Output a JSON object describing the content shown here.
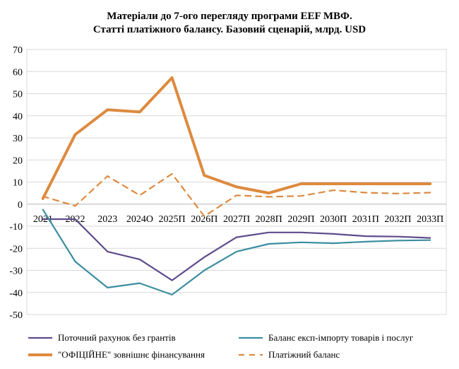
{
  "chart_data": {
    "type": "line",
    "title": "Матеріали до 7-ого перегляду програми EEF МВФ.",
    "subtitle": "Статті платіжного балансу. Базовий сценарій, млрд. USD",
    "categories": [
      "2021",
      "2022",
      "2023",
      "2024О",
      "2025П",
      "2026П",
      "2027П",
      "2028П",
      "2029П",
      "2030П",
      "2031П",
      "2032П",
      "2033П"
    ],
    "ylim": [
      -50,
      70
    ],
    "yticks": [
      "70",
      "60",
      "50",
      "40",
      "30",
      "20",
      "10",
      "0",
      "-10",
      "-20",
      "-30",
      "-40",
      "-50"
    ],
    "grid": true,
    "legend_position": "bottom",
    "series": [
      {
        "name": "Поточний рахунок без грантів",
        "color": "#5f4b8b",
        "dash": "solid",
        "values": [
          -6.8,
          -6.8,
          -21.5,
          -25,
          -34.5,
          -24,
          -15,
          -12.8,
          -12.8,
          -13.5,
          -14.5,
          -14.7,
          -15.3
        ]
      },
      {
        "name": "Баланс експ-імпорту товарів і послуг",
        "color": "#3b8ea0",
        "dash": "solid",
        "values": [
          -2.5,
          -26,
          -37.8,
          -35.8,
          -41,
          -30,
          -21.5,
          -18,
          -17.3,
          -17.7,
          -17,
          -16.5,
          -16.3
        ]
      },
      {
        "name": "\"ОФІЦІЙНЕ\"  зовнішнє фінансування",
        "color": "#dd8a3e",
        "dash": "solid",
        "values": [
          2.5,
          31.5,
          42.7,
          41.7,
          57.2,
          13,
          7.8,
          5,
          9.2,
          9.2,
          9.2,
          9.2,
          9.2
        ]
      },
      {
        "name": "Платіжний баланс",
        "color": "#dd8a3e",
        "dash": "dashed",
        "values": [
          3.5,
          -0.8,
          12.7,
          4,
          13.7,
          -5.5,
          4,
          3.3,
          3.7,
          6.3,
          5.2,
          4.8,
          5.2
        ]
      }
    ]
  }
}
